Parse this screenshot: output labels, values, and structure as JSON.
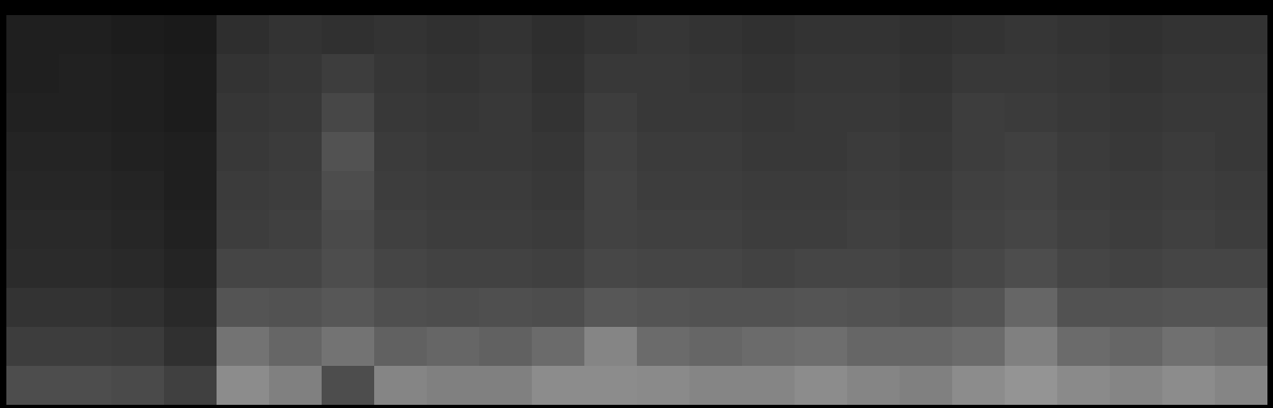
{
  "chart_data": {
    "type": "heatmap",
    "tick_labels": false,
    "zlim": [
      0,
      100
    ],
    "values": [
      [
        12,
        12,
        11,
        10,
        18,
        20,
        19,
        20,
        19,
        20,
        18,
        20,
        21,
        20,
        19,
        20,
        20,
        19,
        20,
        21,
        20,
        19,
        20,
        20
      ],
      [
        12,
        13,
        12,
        11,
        20,
        21,
        24,
        21,
        20,
        21,
        19,
        22,
        22,
        21,
        20,
        21,
        21,
        20,
        22,
        22,
        21,
        20,
        21,
        21
      ],
      [
        13,
        13,
        12,
        11,
        21,
        22,
        28,
        22,
        21,
        22,
        20,
        24,
        22,
        22,
        21,
        22,
        22,
        21,
        24,
        23,
        22,
        21,
        22,
        22
      ],
      [
        14,
        14,
        13,
        12,
        22,
        23,
        32,
        23,
        22,
        22,
        21,
        25,
        23,
        23,
        22,
        22,
        23,
        22,
        24,
        25,
        23,
        22,
        23,
        22
      ],
      [
        15,
        15,
        14,
        12,
        23,
        24,
        30,
        24,
        23,
        23,
        22,
        26,
        24,
        24,
        23,
        23,
        24,
        23,
        25,
        26,
        24,
        23,
        24,
        23
      ],
      [
        16,
        16,
        15,
        13,
        24,
        25,
        29,
        25,
        24,
        24,
        23,
        26,
        25,
        25,
        24,
        24,
        25,
        24,
        26,
        27,
        25,
        24,
        25,
        24
      ],
      [
        17,
        17,
        16,
        14,
        27,
        27,
        30,
        27,
        26,
        26,
        25,
        28,
        27,
        27,
        26,
        27,
        27,
        26,
        28,
        30,
        27,
        26,
        27,
        27
      ],
      [
        20,
        20,
        19,
        16,
        33,
        32,
        34,
        31,
        30,
        31,
        30,
        34,
        33,
        32,
        32,
        33,
        32,
        31,
        33,
        40,
        32,
        32,
        33,
        33
      ],
      [
        24,
        24,
        23,
        19,
        45,
        40,
        45,
        38,
        40,
        38,
        42,
        52,
        42,
        40,
        42,
        43,
        40,
        40,
        42,
        50,
        42,
        40,
        44,
        42
      ],
      [
        30,
        30,
        29,
        25,
        55,
        50,
        30,
        52,
        50,
        50,
        55,
        55,
        54,
        52,
        52,
        55,
        52,
        50,
        55,
        58,
        54,
        52,
        55,
        52
      ]
    ]
  }
}
